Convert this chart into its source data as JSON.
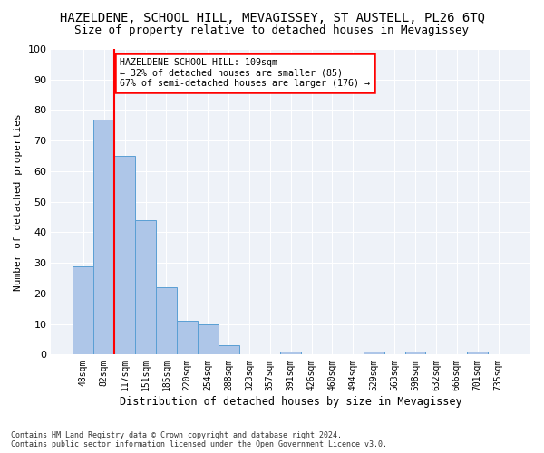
{
  "title1": "HAZELDENE, SCHOOL HILL, MEVAGISSEY, ST AUSTELL, PL26 6TQ",
  "title2": "Size of property relative to detached houses in Mevagissey",
  "xlabel": "Distribution of detached houses by size in Mevagissey",
  "ylabel": "Number of detached properties",
  "bin_labels": [
    "48sqm",
    "82sqm",
    "117sqm",
    "151sqm",
    "185sqm",
    "220sqm",
    "254sqm",
    "288sqm",
    "323sqm",
    "357sqm",
    "391sqm",
    "426sqm",
    "460sqm",
    "494sqm",
    "529sqm",
    "563sqm",
    "598sqm",
    "632sqm",
    "666sqm",
    "701sqm",
    "735sqm"
  ],
  "bar_values": [
    29,
    77,
    65,
    44,
    22,
    11,
    10,
    3,
    0,
    0,
    1,
    0,
    0,
    0,
    1,
    0,
    1,
    0,
    0,
    1,
    0
  ],
  "bar_color": "#aec6e8",
  "bar_edge_color": "#5a9fd4",
  "property_line_x": 2,
  "annotation_text": "HAZELDENE SCHOOL HILL: 109sqm\n← 32% of detached houses are smaller (85)\n67% of semi-detached houses are larger (176) →",
  "annotation_box_color": "white",
  "annotation_box_edge_color": "red",
  "vline_color": "red",
  "ylim": [
    0,
    100
  ],
  "yticks": [
    0,
    10,
    20,
    30,
    40,
    50,
    60,
    70,
    80,
    90,
    100
  ],
  "background_color": "#eef2f8",
  "footer": "Contains HM Land Registry data © Crown copyright and database right 2024.\nContains public sector information licensed under the Open Government Licence v3.0.",
  "title1_fontsize": 10,
  "title2_fontsize": 9,
  "xlabel_fontsize": 8.5,
  "ylabel_fontsize": 8
}
